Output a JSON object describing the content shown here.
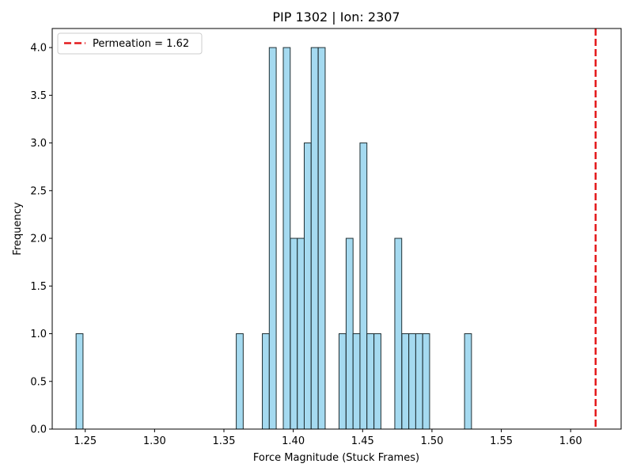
{
  "chart_data": {
    "type": "bar",
    "subtype": "histogram",
    "title": "PIP 1302 | Ion: 2307",
    "xlabel": "Force Magnitude (Stuck Frames)",
    "ylabel": "Frequency",
    "xlim": [
      1.2262,
      1.6364
    ],
    "ylim": [
      0,
      4.2
    ],
    "bin_width": 0.005,
    "xticks": [
      1.25,
      1.3,
      1.35,
      1.4,
      1.45,
      1.5,
      1.55,
      1.6
    ],
    "xtick_labels": [
      "1.25",
      "1.30",
      "1.35",
      "1.40",
      "1.45",
      "1.50",
      "1.55",
      "1.60"
    ],
    "yticks": [
      0.0,
      0.5,
      1.0,
      1.5,
      2.0,
      2.5,
      3.0,
      3.5,
      4.0
    ],
    "ytick_labels": [
      "0.0",
      "0.5",
      "1.0",
      "1.5",
      "2.0",
      "2.5",
      "3.0",
      "3.5",
      "4.0"
    ],
    "bins": [
      {
        "x0": 1.2434,
        "count": 1
      },
      {
        "x0": 1.3589,
        "count": 1
      },
      {
        "x0": 1.3777,
        "count": 1
      },
      {
        "x0": 1.3827,
        "count": 4
      },
      {
        "x0": 1.3928,
        "count": 4
      },
      {
        "x0": 1.3979,
        "count": 2
      },
      {
        "x0": 1.4029,
        "count": 2
      },
      {
        "x0": 1.4079,
        "count": 3
      },
      {
        "x0": 1.4129,
        "count": 4
      },
      {
        "x0": 1.418,
        "count": 4
      },
      {
        "x0": 1.433,
        "count": 1
      },
      {
        "x0": 1.4381,
        "count": 2
      },
      {
        "x0": 1.4431,
        "count": 1
      },
      {
        "x0": 1.4481,
        "count": 3
      },
      {
        "x0": 1.4531,
        "count": 1
      },
      {
        "x0": 1.4582,
        "count": 1
      },
      {
        "x0": 1.4732,
        "count": 2
      },
      {
        "x0": 1.4783,
        "count": 1
      },
      {
        "x0": 1.4833,
        "count": 1
      },
      {
        "x0": 1.4883,
        "count": 1
      },
      {
        "x0": 1.4933,
        "count": 1
      },
      {
        "x0": 1.5235,
        "count": 1
      }
    ],
    "bar_color": "#87CEEB",
    "bar_edge_color": "#1f2f33",
    "threshold": {
      "value": 1.618,
      "label": "Permeation = 1.62",
      "color": "#e41a1c",
      "style": "dashed"
    },
    "legend_position": "top-left",
    "grid": false
  }
}
